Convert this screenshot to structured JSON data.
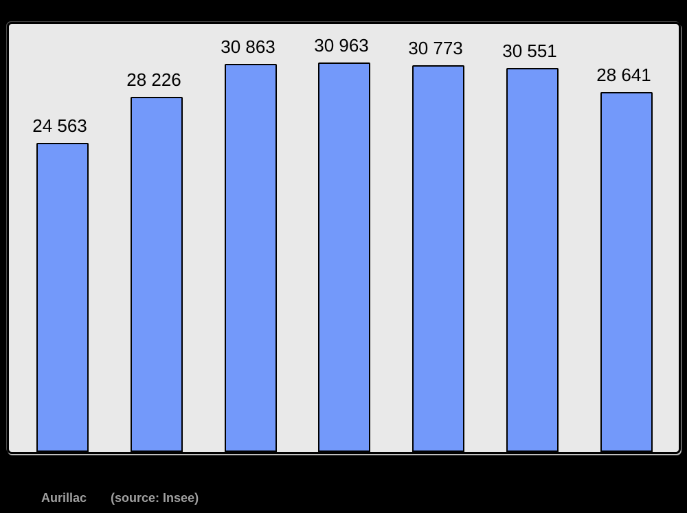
{
  "page": {
    "background": "#000000"
  },
  "chart_data": {
    "type": "bar",
    "title": "Aurillac",
    "source_note": "(source: Insee)",
    "categories": [
      "",
      "",
      "",
      "",
      "",
      "",
      ""
    ],
    "values": [
      24563,
      28226,
      30863,
      30963,
      30773,
      30551,
      28641
    ],
    "bar_value_labels": [
      "24 563",
      "28 226",
      "30 863",
      "30 963",
      "30 773",
      "30 551",
      "28 641"
    ],
    "xlabel": "",
    "ylabel": "",
    "ylim": [
      0,
      34300
    ],
    "grid": false,
    "legend": false,
    "colors": {
      "bar_fill": "#7399fa",
      "bar_border": "#000000",
      "plot_background": "#e9e9e9",
      "frame_border": "#000000",
      "page_background": "#000000",
      "value_label_text": "#000000",
      "caption_text": "#a0a0a0"
    }
  }
}
